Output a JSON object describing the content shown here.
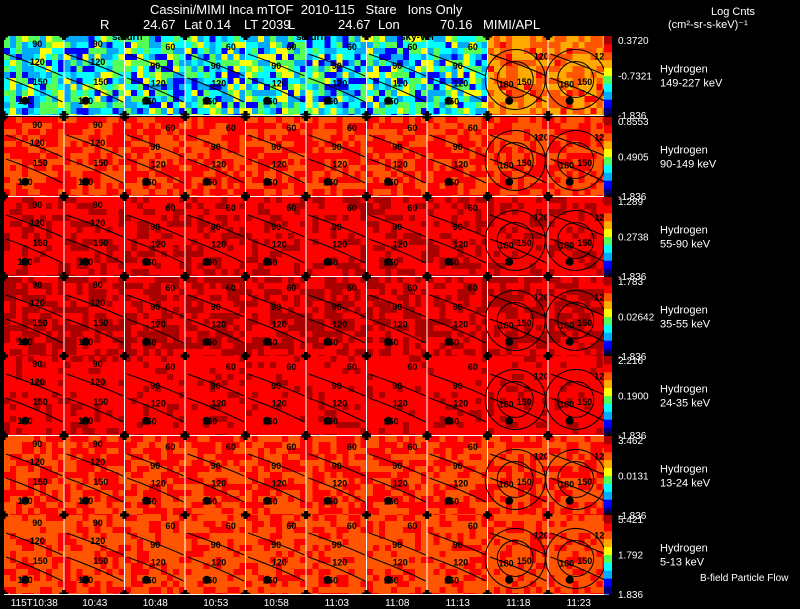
{
  "header": {
    "title": "Cassini/MIMI Inca mTOF  2010-115   Stare   Ions Only",
    "r_label": "R",
    "r_value": "24.67",
    "lat": "Lat 0.14",
    "lt": "LT 2039",
    "l_label": "L",
    "l_value": "24.67",
    "lon": "Lon",
    "lon_value": "70.16",
    "org": "MIMI/APL",
    "colorbar_title": "Log Cnts",
    "colorbar_units": "(cm²-sr-s-keV)⁻¹"
  },
  "overlay_labels": {
    "saturn_1": "saturn",
    "saturn_2": "saturn",
    "sky": "sky-vel"
  },
  "footer": {
    "legend_note": "B-field Particle Flow"
  },
  "chart_data": {
    "type": "heatmap",
    "title": "Cassini/MIMI Inca mTOF  2010-115   Stare   Ions Only",
    "x_tick_labels": [
      "115T10:38",
      "10:43",
      "10:48",
      "10:53",
      "10:58",
      "11:03",
      "11:08",
      "11:13",
      "11:18",
      "11:23"
    ],
    "contour_levels": [
      "60",
      "90",
      "120",
      "150",
      "180"
    ],
    "channels": [
      {
        "species": "Hydrogen",
        "energy": "149-227 keV",
        "cb_max": "0.3720",
        "cb_mid": "-0.7321",
        "cb_min": "-1.836",
        "level": 0.35
      },
      {
        "species": "Hydrogen",
        "energy": "90-149 keV",
        "cb_max": "0.8553",
        "cb_mid": "0.4905",
        "cb_min": "-1.836",
        "level": 0.8
      },
      {
        "species": "Hydrogen",
        "energy": "55-90 keV",
        "cb_max": "1.289",
        "cb_mid": "0.2738",
        "cb_min": "-1.836",
        "level": 0.88
      },
      {
        "species": "Hydrogen",
        "energy": "35-55 keV",
        "cb_max": "1.783",
        "cb_mid": "0.02642",
        "cb_min": "-1.836",
        "level": 0.9
      },
      {
        "species": "Hydrogen",
        "energy": "24-35 keV",
        "cb_max": "2.216",
        "cb_mid": "0.1900",
        "cb_min": "-1.836",
        "level": 0.86
      },
      {
        "species": "Hydrogen",
        "energy": "13-24 keV",
        "cb_max": "3.462",
        "cb_mid": "0.0131",
        "cb_min": "-1.836",
        "level": 0.8
      },
      {
        "species": "Hydrogen",
        "energy": "5-13 keV",
        "cb_max": "5.421",
        "cb_mid": "1.792",
        "cb_min": "1.836",
        "level": 0.78
      }
    ],
    "colormap": [
      "#00007f",
      "#0000ff",
      "#00aaff",
      "#00ffff",
      "#55ff55",
      "#ffff00",
      "#ffaa00",
      "#ff5500",
      "#ff0000",
      "#aa0000"
    ]
  }
}
